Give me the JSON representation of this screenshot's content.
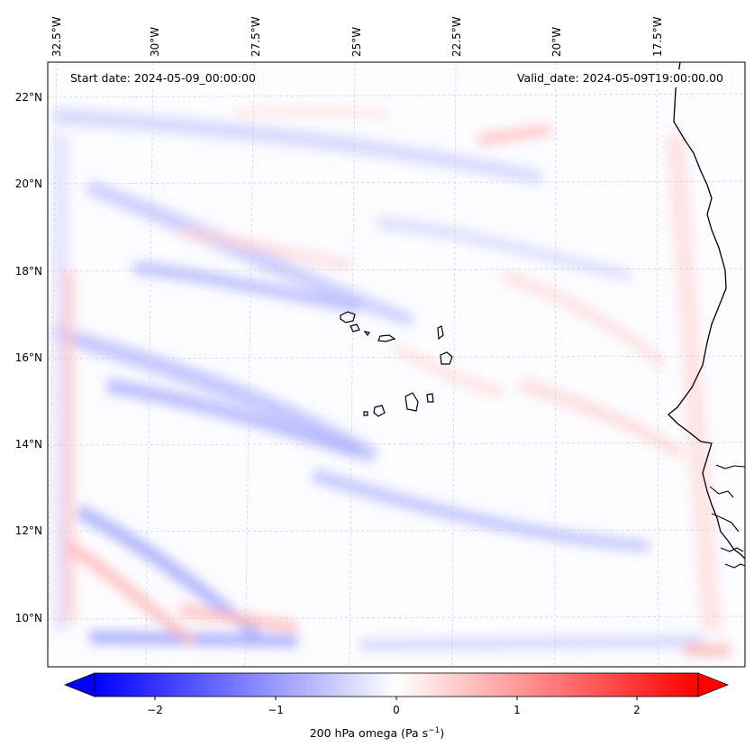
{
  "map": {
    "lon_ticks": [
      "32.5°W",
      "30°W",
      "27.5°W",
      "25°W",
      "22.5°W",
      "20°W",
      "17.5°W"
    ],
    "lat_ticks": [
      "22°N",
      "20°N",
      "18°N",
      "16°N",
      "14°N",
      "12°N",
      "10°N"
    ],
    "start_date": "Start date: 2024-05-09_00:00:00",
    "valid_date": "Valid_date: 2024-05-09T19:00:00.00"
  },
  "colorbar": {
    "ticks": [
      "−2",
      "−1",
      "0",
      "1",
      "2"
    ],
    "label_main": "200 hPa omega (Pa s",
    "label_exp": "−1",
    "label_end": ")",
    "colors": {
      "negative": "#0000ff",
      "zero": "#ffffff",
      "positive": "#ff0000"
    }
  }
}
